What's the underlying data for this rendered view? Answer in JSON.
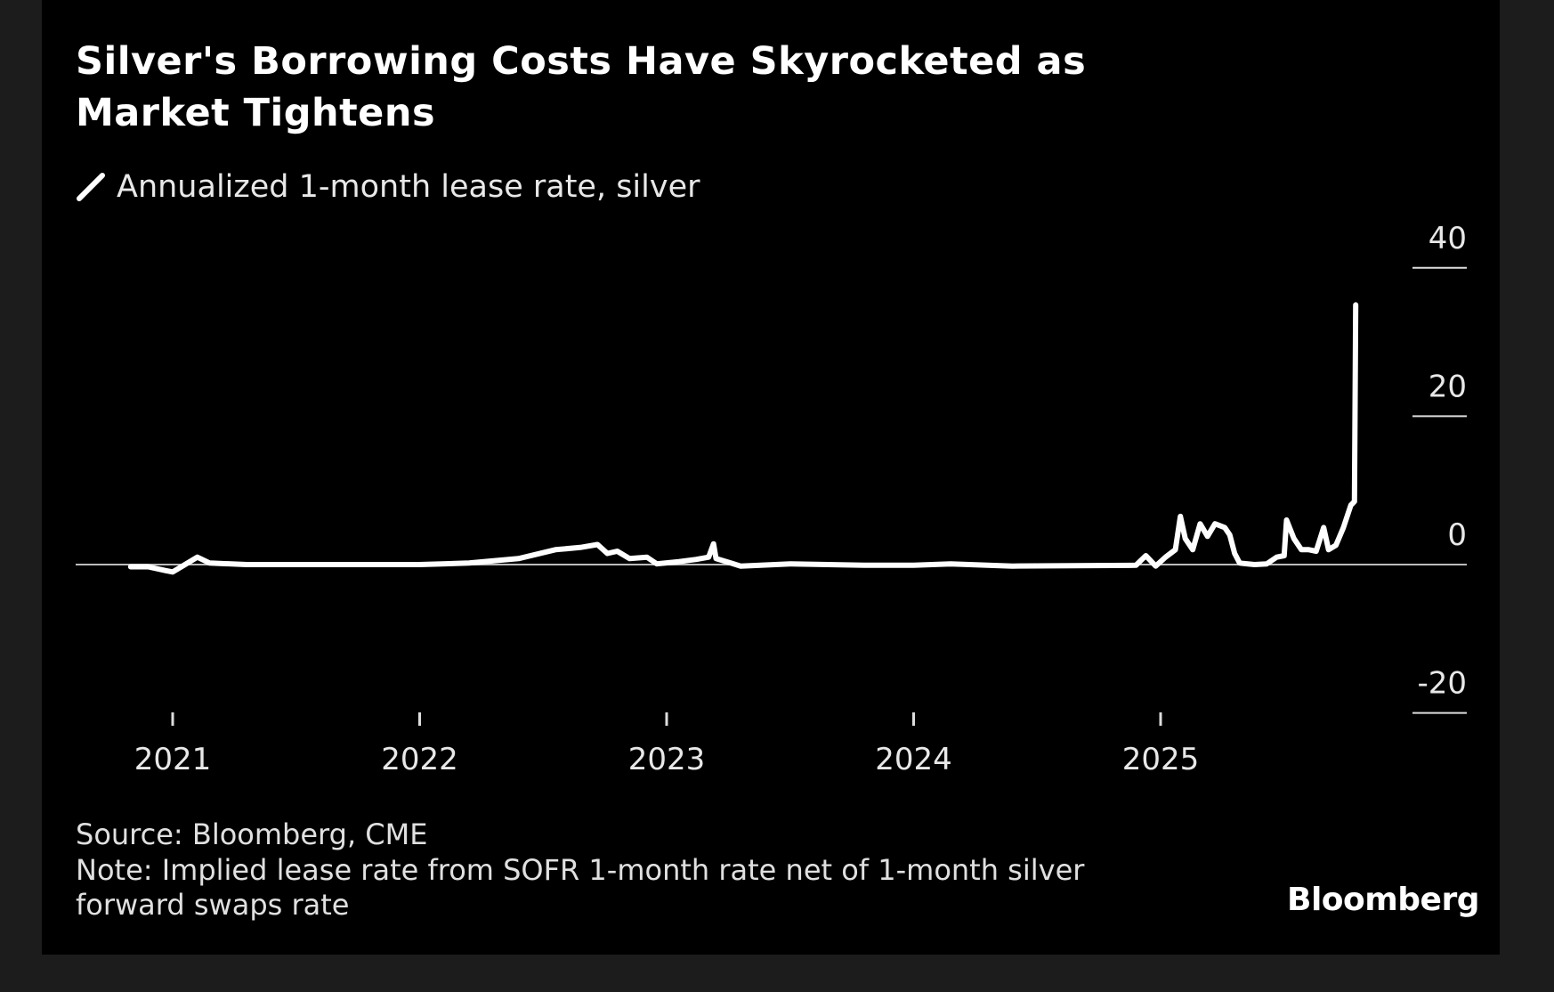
{
  "chart_data": {
    "type": "line",
    "title": "Silver's Borrowing Costs Have Skyrocketed as Market Tightens",
    "legend": [
      "Annualized 1-month lease rate, silver"
    ],
    "legend_placement": "top-left",
    "xlabel": "",
    "ylabel": "",
    "x_ticks": [
      "2021",
      "2022",
      "2023",
      "2024",
      "2025"
    ],
    "y_ticks": [
      "40",
      "20",
      "0",
      "-20"
    ],
    "ylim": [
      -20,
      40
    ],
    "xlim": [
      2020.65,
      2026.3
    ],
    "grid": false,
    "series": [
      {
        "name": "Annualized 1-month lease rate, silver",
        "color": "#ffffff",
        "x": [
          2020.83,
          2020.9,
          2020.97,
          2021.0,
          2021.05,
          2021.1,
          2021.15,
          2021.3,
          2021.6,
          2022.0,
          2022.2,
          2022.4,
          2022.55,
          2022.65,
          2022.72,
          2022.76,
          2022.8,
          2022.85,
          2022.92,
          2022.96,
          2023.05,
          2023.12,
          2023.17,
          2023.19,
          2023.2,
          2023.26,
          2023.3,
          2023.5,
          2023.8,
          2024.0,
          2024.15,
          2024.4,
          2024.9,
          2024.94,
          2024.98,
          2025.02,
          2025.06,
          2025.08,
          2025.1,
          2025.13,
          2025.16,
          2025.19,
          2025.22,
          2025.26,
          2025.28,
          2025.3,
          2025.32,
          2025.38,
          2025.43,
          2025.47,
          2025.5,
          2025.51,
          2025.54,
          2025.57,
          2025.6,
          2025.63,
          2025.66,
          2025.68,
          2025.71,
          2025.74,
          2025.77,
          2025.785,
          2025.79
        ],
        "y": [
          -0.3,
          -0.3,
          -0.8,
          -1.0,
          0,
          1.0,
          0.2,
          0,
          0,
          0,
          0.2,
          0.8,
          2.0,
          2.3,
          2.7,
          1.5,
          1.8,
          0.8,
          1.0,
          0.1,
          0.4,
          0.7,
          1.0,
          2.8,
          0.8,
          0.2,
          -0.2,
          0.1,
          -0.1,
          -0.1,
          0.1,
          -0.2,
          -0.1,
          1.2,
          -0.2,
          1.0,
          2.0,
          6.5,
          3.5,
          2.0,
          5.5,
          3.8,
          5.5,
          5.0,
          4.0,
          1.5,
          0.2,
          0,
          0.1,
          1.0,
          1.2,
          6.0,
          3.5,
          2.0,
          2.0,
          1.8,
          5.0,
          2.0,
          2.6,
          5.0,
          8.0,
          8.5,
          35.0
        ]
      }
    ]
  },
  "header": {
    "title": "Silver's Borrowing Costs Have Skyrocketed as Market Tightens",
    "legend_label": "Annualized 1-month lease rate, silver"
  },
  "footer": {
    "source": "Source: Bloomberg, CME",
    "note_line1": "Note: Implied lease rate from SOFR 1-month rate net of 1-month silver",
    "note_line2": "forward swaps rate",
    "logo": "Bloomberg"
  }
}
